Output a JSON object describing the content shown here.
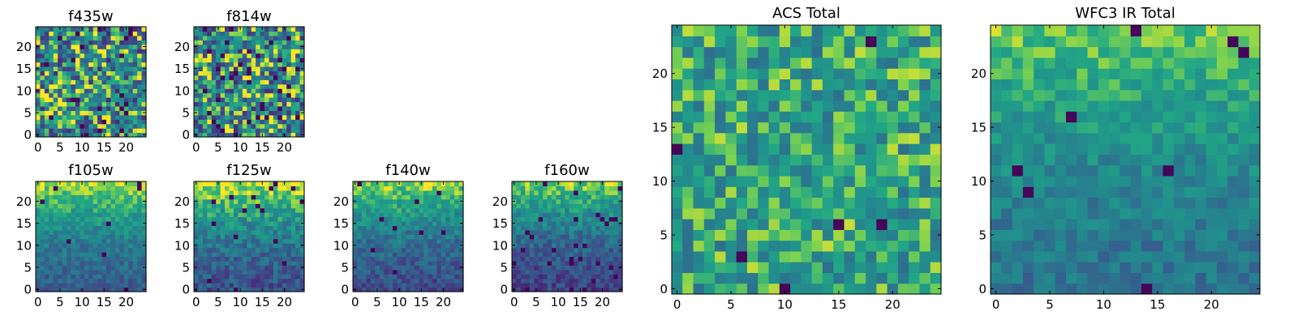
{
  "figure": {
    "colormap": "viridis",
    "colors": {
      "low": "#440154",
      "mid": "#21918c",
      "high": "#fde725"
    }
  },
  "chart_data": [
    {
      "id": "f435w",
      "type": "heatmap",
      "title": "f435w",
      "grid_size": 25,
      "xlim": [
        -0.5,
        24.5
      ],
      "ylim": [
        -0.5,
        24.5
      ],
      "xticks": [
        0,
        5,
        10,
        15,
        20
      ],
      "yticks": [
        0,
        5,
        10,
        15,
        20
      ],
      "xtick_labels": [
        "0",
        "5",
        "10",
        "15",
        "20"
      ],
      "ytick_labels": [
        "0",
        "5",
        "10",
        "15",
        "20"
      ],
      "pattern": "noise",
      "mean_level": 0.6,
      "variation": 0.45,
      "dark_pixel_fraction": 0.04,
      "seed": 11
    },
    {
      "id": "f814w",
      "type": "heatmap",
      "title": "f814w",
      "grid_size": 25,
      "xlim": [
        -0.5,
        24.5
      ],
      "ylim": [
        -0.5,
        24.5
      ],
      "xticks": [
        0,
        5,
        10,
        15,
        20
      ],
      "yticks": [
        0,
        5,
        10,
        15,
        20
      ],
      "xtick_labels": [
        "0",
        "5",
        "10",
        "15",
        "20"
      ],
      "ytick_labels": [
        "0",
        "5",
        "10",
        "15",
        "20"
      ],
      "pattern": "noise",
      "mean_level": 0.62,
      "variation": 0.45,
      "dark_pixel_fraction": 0.05,
      "seed": 23
    },
    {
      "id": "f105w",
      "type": "heatmap",
      "title": "f105w",
      "grid_size": 25,
      "xlim": [
        -0.5,
        24.5
      ],
      "ylim": [
        -0.5,
        24.5
      ],
      "xticks": [
        0,
        5,
        10,
        15,
        20
      ],
      "yticks": [
        0,
        5,
        10,
        15,
        20
      ],
      "xtick_labels": [
        "0",
        "5",
        "10",
        "15",
        "20"
      ],
      "ytick_labels": [
        "0",
        "5",
        "10",
        "15",
        "20"
      ],
      "pattern": "gradient_top",
      "top_level": 0.92,
      "bottom_level": 0.38,
      "variation": 0.12,
      "dark_pixel_fraction": 0.01,
      "seed": 37
    },
    {
      "id": "f125w",
      "type": "heatmap",
      "title": "f125w",
      "grid_size": 25,
      "xlim": [
        -0.5,
        24.5
      ],
      "ylim": [
        -0.5,
        24.5
      ],
      "xticks": [
        0,
        5,
        10,
        15,
        20
      ],
      "yticks": [
        0,
        5,
        10,
        15,
        20
      ],
      "xtick_labels": [
        "0",
        "5",
        "10",
        "15",
        "20"
      ],
      "ytick_labels": [
        "0",
        "5",
        "10",
        "15",
        "20"
      ],
      "pattern": "gradient_top",
      "top_level": 0.95,
      "bottom_level": 0.32,
      "variation": 0.16,
      "dark_pixel_fraction": 0.02,
      "seed": 41
    },
    {
      "id": "f140w",
      "type": "heatmap",
      "title": "f140w",
      "grid_size": 25,
      "xlim": [
        -0.5,
        24.5
      ],
      "ylim": [
        -0.5,
        24.5
      ],
      "xticks": [
        0,
        5,
        10,
        15,
        20
      ],
      "yticks": [
        0,
        5,
        10,
        15,
        20
      ],
      "xtick_labels": [
        "0",
        "5",
        "10",
        "15",
        "20"
      ],
      "ytick_labels": [
        "0",
        "5",
        "10",
        "15",
        "20"
      ],
      "pattern": "gradient_top",
      "top_level": 0.9,
      "bottom_level": 0.3,
      "variation": 0.14,
      "dark_pixel_fraction": 0.02,
      "seed": 53
    },
    {
      "id": "f160w",
      "type": "heatmap",
      "title": "f160w",
      "grid_size": 25,
      "xlim": [
        -0.5,
        24.5
      ],
      "ylim": [
        -0.5,
        24.5
      ],
      "xticks": [
        0,
        5,
        10,
        15,
        20
      ],
      "yticks": [
        0,
        5,
        10,
        15,
        20
      ],
      "xtick_labels": [
        "0",
        "5",
        "10",
        "15",
        "20"
      ],
      "ytick_labels": [
        "0",
        "5",
        "10",
        "15",
        "20"
      ],
      "pattern": "gradient_top",
      "top_level": 0.88,
      "bottom_level": 0.25,
      "variation": 0.14,
      "dark_pixel_fraction": 0.03,
      "seed": 67
    },
    {
      "id": "acs-total",
      "type": "heatmap",
      "title": "ACS Total",
      "grid_size": 25,
      "xlim": [
        -0.5,
        24.5
      ],
      "ylim": [
        -0.5,
        24.5
      ],
      "xticks": [
        0,
        5,
        10,
        15,
        20
      ],
      "yticks": [
        0,
        5,
        10,
        15,
        20
      ],
      "xtick_labels": [
        "0",
        "5",
        "10",
        "15",
        "20"
      ],
      "ytick_labels": [
        "0",
        "5",
        "10",
        "15",
        "20"
      ],
      "pattern": "noise",
      "mean_level": 0.7,
      "variation": 0.25,
      "dark_pixel_fraction": 0.015,
      "seed": 79
    },
    {
      "id": "wfc3-ir-total",
      "type": "heatmap",
      "title": "WFC3 IR Total",
      "grid_size": 25,
      "xlim": [
        -0.5,
        24.5
      ],
      "ylim": [
        -0.5,
        24.5
      ],
      "xticks": [
        0,
        5,
        10,
        15,
        20
      ],
      "yticks": [
        0,
        5,
        10,
        15,
        20
      ],
      "xtick_labels": [
        "0",
        "5",
        "10",
        "15",
        "20"
      ],
      "ytick_labels": [
        "0",
        "5",
        "10",
        "15",
        "20"
      ],
      "pattern": "gradient_top",
      "top_level": 0.85,
      "bottom_level": 0.48,
      "variation": 0.12,
      "dark_pixel_fraction": 0.015,
      "seed": 97
    }
  ]
}
